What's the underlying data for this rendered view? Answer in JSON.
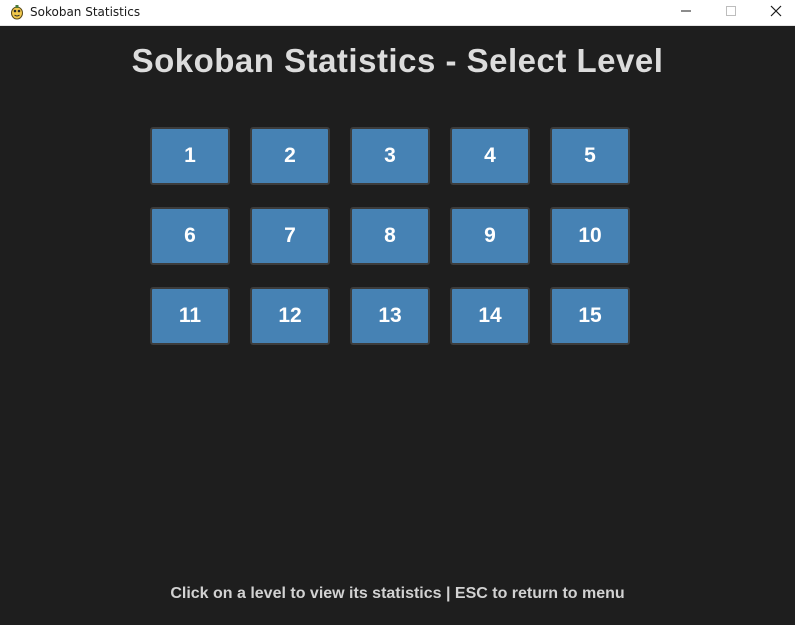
{
  "window": {
    "title": "Sokoban Statistics",
    "icons": {
      "app": "pygame-snake-icon",
      "minimize": "minimize-icon",
      "maximize": "maximize-icon",
      "close": "close-icon"
    }
  },
  "header": {
    "title": "Sokoban Statistics - Select Level"
  },
  "levels": [
    "1",
    "2",
    "3",
    "4",
    "5",
    "6",
    "7",
    "8",
    "9",
    "10",
    "11",
    "12",
    "13",
    "14",
    "15"
  ],
  "footer": {
    "hint": "Click on a level to view its statistics | ESC to return to menu"
  },
  "colors": {
    "background": "#1e1e1e",
    "level_button": "#4682b4",
    "level_button_border": "#3c3c3c",
    "title_text": "#dcdcdc",
    "hint_text": "#d2d2d2"
  }
}
